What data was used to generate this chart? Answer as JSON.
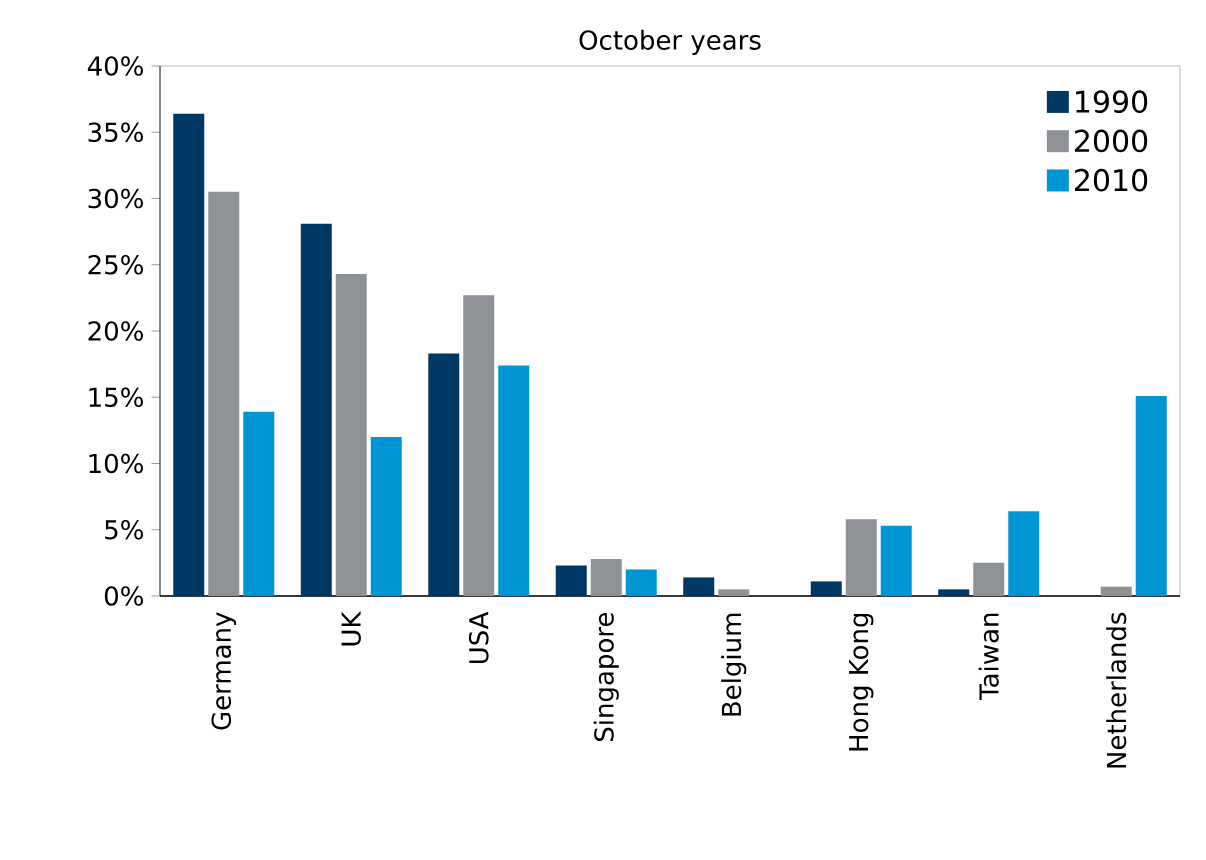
{
  "chart_data": {
    "type": "bar",
    "title": "October years",
    "categories": [
      "Germany",
      "UK",
      "USA",
      "Singapore",
      "Belgium",
      "Hong Kong",
      "Taiwan",
      "Netherlands"
    ],
    "series": [
      {
        "name": "1990",
        "color": "#003865",
        "values": [
          36.4,
          28.1,
          18.3,
          2.3,
          1.4,
          1.1,
          0.5,
          null
        ]
      },
      {
        "name": "2000",
        "color": "#8e9196",
        "values": [
          30.5,
          24.3,
          22.7,
          2.8,
          0.5,
          5.8,
          2.5,
          0.7
        ]
      },
      {
        "name": "2010",
        "color": "#0096d6",
        "values": [
          13.9,
          12.0,
          17.4,
          2.0,
          null,
          5.3,
          6.4,
          15.1
        ]
      }
    ],
    "ylim": [
      0,
      40
    ],
    "yticks": [
      {
        "value": 0,
        "label": "0%"
      },
      {
        "value": 5,
        "label": "5%"
      },
      {
        "value": 10,
        "label": "10%"
      },
      {
        "value": 15,
        "label": "15%"
      },
      {
        "value": 20,
        "label": "20%"
      },
      {
        "value": 25,
        "label": "25%"
      },
      {
        "value": 30,
        "label": "30%"
      },
      {
        "value": 35,
        "label": "35%"
      },
      {
        "value": 40,
        "label": "40%"
      }
    ],
    "grid": false,
    "legend": "top right"
  }
}
